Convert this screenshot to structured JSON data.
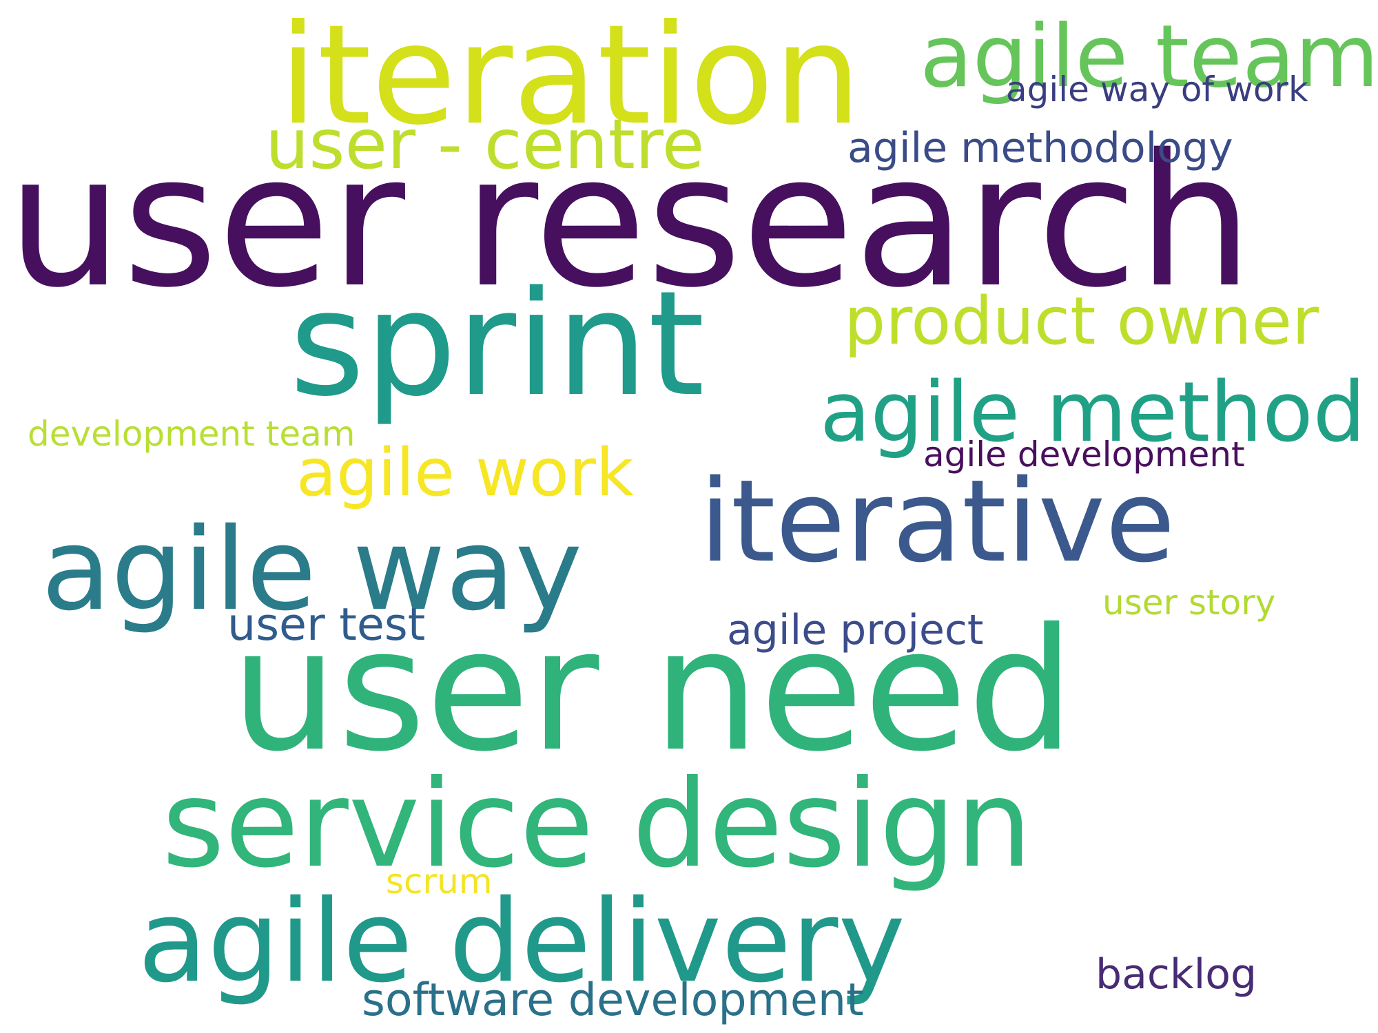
{
  "word_cloud": {
    "words": [
      {
        "id": "user-research",
        "text": "user research",
        "color": "#46105f"
      },
      {
        "id": "iteration",
        "text": "iteration",
        "color": "#d3e01a"
      },
      {
        "id": "agile-team",
        "text": "agile team",
        "color": "#65c55a"
      },
      {
        "id": "agile-way-of-work",
        "text": "agile way of work",
        "color": "#3a3d80"
      },
      {
        "id": "user-centre",
        "text": "user - centre",
        "color": "#bdde2d"
      },
      {
        "id": "agile-methodology",
        "text": "agile methodology",
        "color": "#3a4b87"
      },
      {
        "id": "sprint",
        "text": "sprint",
        "color": "#1f9a8b"
      },
      {
        "id": "product-owner",
        "text": "product owner",
        "color": "#bddf2b"
      },
      {
        "id": "agile-method",
        "text": "agile method",
        "color": "#20a186"
      },
      {
        "id": "development-team",
        "text": "development team",
        "color": "#b8df31"
      },
      {
        "id": "agile-development",
        "text": "agile development",
        "color": "#490f5d"
      },
      {
        "id": "agile-work",
        "text": "agile work",
        "color": "#f6e624"
      },
      {
        "id": "iterative",
        "text": "iterative",
        "color": "#3b598d"
      },
      {
        "id": "agile-way",
        "text": "agile way",
        "color": "#2a7c8a"
      },
      {
        "id": "user-test",
        "text": "user test",
        "color": "#2f5c8c"
      },
      {
        "id": "agile-project",
        "text": "agile project",
        "color": "#3c4c8b"
      },
      {
        "id": "user-story",
        "text": "user story",
        "color": "#b2da33"
      },
      {
        "id": "user-need",
        "text": "user need",
        "color": "#2fb37b"
      },
      {
        "id": "service-design",
        "text": "service design",
        "color": "#31b57a"
      },
      {
        "id": "scrum",
        "text": "scrum",
        "color": "#f3e424"
      },
      {
        "id": "agile-delivery",
        "text": "agile delivery",
        "color": "#20998b"
      },
      {
        "id": "backlog",
        "text": "backlog",
        "color": "#482b74"
      },
      {
        "id": "software-development",
        "text": "software development",
        "color": "#2a7089"
      }
    ]
  }
}
